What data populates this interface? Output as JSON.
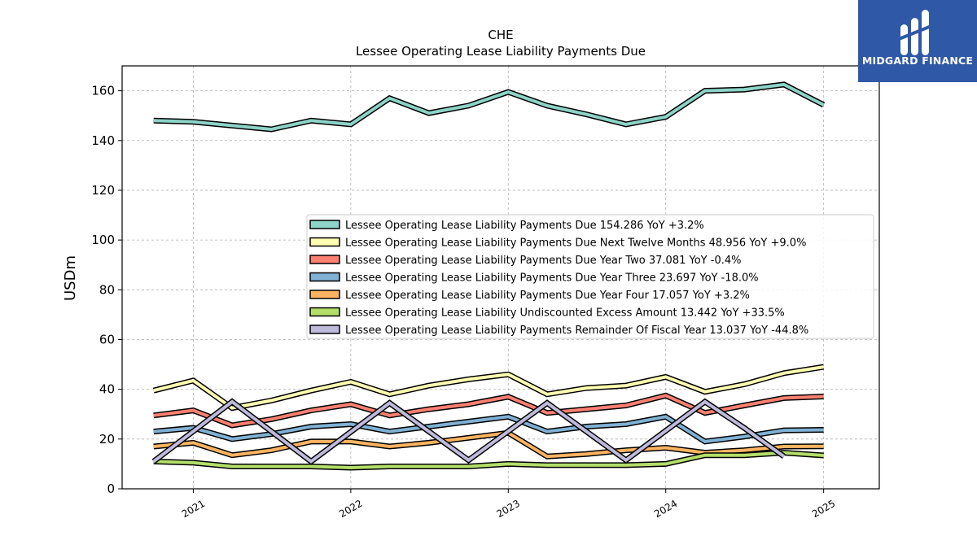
{
  "brand": {
    "name": "MIDGARD FINANCE",
    "logo_icon": "midgard-logo-icon",
    "color": "#2f58a6"
  },
  "chart_data": {
    "type": "line",
    "title": "CHE",
    "subtitle": "Lessee Operating Lease Liability Payments Due",
    "xlabel": "",
    "ylabel": "USDm",
    "ylim": [
      0,
      170
    ],
    "yticks": [
      0,
      20,
      40,
      60,
      80,
      100,
      120,
      140,
      160
    ],
    "xlim": [
      "2020-07-20",
      "2025-05-10"
    ],
    "xticks": [
      "2021",
      "2022",
      "2023",
      "2024",
      "2025"
    ],
    "grid": true,
    "legend_position": "center-right",
    "x": [
      "2020-10-01",
      "2021-01-01",
      "2021-04-01",
      "2021-07-01",
      "2021-10-01",
      "2022-01-01",
      "2022-04-01",
      "2022-07-01",
      "2022-10-01",
      "2023-01-01",
      "2023-04-01",
      "2023-07-01",
      "2023-10-01",
      "2024-01-01",
      "2024-04-01",
      "2024-07-01",
      "2024-10-01",
      "2025-01-01"
    ],
    "series": [
      {
        "name": "Lessee Operating Lease Liability Payments Due",
        "legend": "Lessee Operating Lease Liability Payments Due  154.286 YoY +3.2%",
        "color": "#8dd3c7",
        "values": [
          148,
          147.5,
          146,
          144.5,
          148,
          146.5,
          157,
          151,
          154,
          159.5,
          154,
          150.5,
          146.5,
          149.5,
          160,
          160.5,
          162.5,
          154.3
        ]
      },
      {
        "name": "Lessee Operating Lease Liability Payments Due Next Twelve Months",
        "legend": "Lessee Operating Lease Liability Payments Due Next Twelve Months  48.956 YoY +9.0%",
        "color": "#ffffb3",
        "values": [
          39.5,
          43.5,
          32.5,
          35.5,
          39.5,
          43,
          38,
          41.5,
          44,
          46,
          38,
          40.5,
          41.5,
          45,
          39,
          42,
          46.5,
          49
        ]
      },
      {
        "name": "Lessee Operating Lease Liability Payments Due Year Two",
        "legend": "Lessee Operating Lease Liability Payments Due Year Two  37.081 YoY -0.4%",
        "color": "#fb8072",
        "values": [
          29.5,
          31.5,
          25.5,
          28,
          31.5,
          34,
          29.5,
          32,
          34,
          37,
          30.5,
          32,
          33.5,
          37.5,
          30.5,
          33.5,
          36.5,
          37.1
        ]
      },
      {
        "name": "Lessee Operating Lease Liability Payments Due Year Three",
        "legend": "Lessee Operating Lease Liability Payments Due Year Three  23.697 YoY -18.0%",
        "color": "#80b1d3",
        "values": [
          23,
          24.5,
          20,
          22,
          25,
          26,
          23,
          25,
          27,
          29,
          23,
          25,
          26,
          29,
          19,
          21,
          23.5,
          23.7
        ]
      },
      {
        "name": "Lessee Operating Lease Liability Payments Due Year Four",
        "legend": "Lessee Operating Lease Liability Payments Due Year Four  17.057 YoY +3.2%",
        "color": "#fdb462",
        "values": [
          17,
          18.5,
          13.5,
          15.5,
          19,
          19,
          17,
          18.5,
          20.5,
          22.5,
          13,
          14,
          15.5,
          16.5,
          14.5,
          15.5,
          17,
          17.1
        ]
      },
      {
        "name": "Lessee Operating Lease Liability Undiscounted Excess Amount",
        "legend": "Lessee Operating Lease Liability Undiscounted Excess Amount  13.442 YoY +33.5%",
        "color": "#b3de69",
        "values": [
          11,
          10.5,
          9,
          9,
          9,
          8.5,
          9,
          9,
          9,
          10,
          9.5,
          9.5,
          9.5,
          10,
          13.5,
          13.5,
          14.5,
          13.4
        ]
      },
      {
        "name": "Lessee Operating Lease Liability Payments Remainder Of Fiscal Year",
        "legend": "Lessee Operating Lease Liability Payments Remainder Of Fiscal Year  13.037 YoY -44.8%",
        "color": "#bebada",
        "x": [
          "2020-10-01",
          "2021-04-01",
          "2021-10-01",
          "2022-04-01",
          "2022-10-01",
          "2023-04-01",
          "2023-10-01",
          "2024-04-01",
          "2024-07-01",
          "2024-10-01"
        ],
        "values": [
          11,
          35,
          11,
          34.5,
          11.5,
          34.5,
          11.5,
          35,
          24.5,
          13
        ]
      }
    ]
  }
}
